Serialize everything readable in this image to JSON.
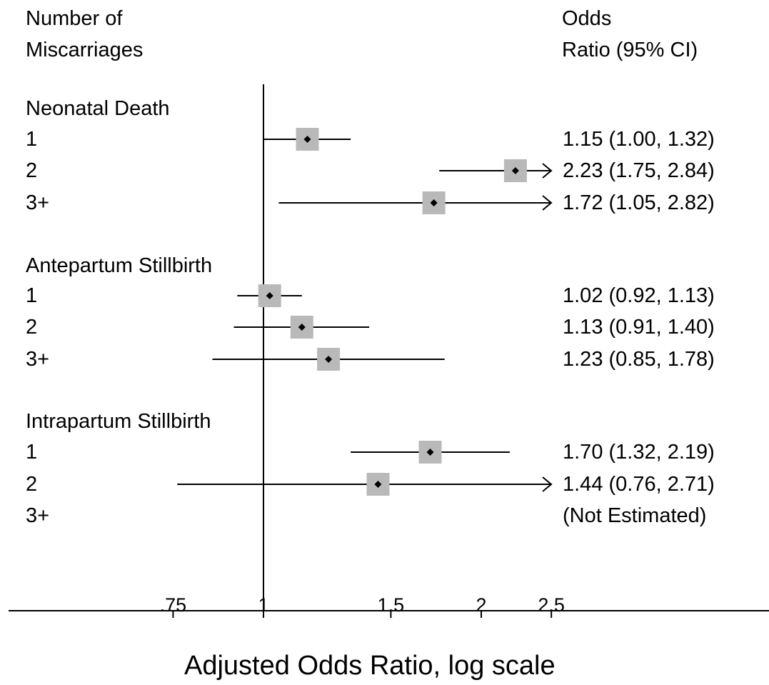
{
  "header": {
    "left_line1": "Number of",
    "left_line2": "Miscarriages",
    "right_line1": "Odds",
    "right_line2": "Ratio (95% CI)"
  },
  "chart_data": {
    "type": "forest",
    "xlabel": "Adjusted Odds Ratio, log scale",
    "xscale": "log",
    "xlim": [
      0.67,
      2.5
    ],
    "xticks": [
      0.75,
      1,
      1.5,
      2,
      2.5
    ],
    "xtick_labels": [
      ".75",
      "1",
      "1.5",
      "2",
      "2.5"
    ],
    "reference_line": 1,
    "groups": [
      {
        "name": "Neonatal Death",
        "rows": [
          {
            "label": "1",
            "or": 1.15,
            "lower": 1.0,
            "upper": 1.32,
            "arrow": false,
            "text": "1.15 (1.00, 1.32)"
          },
          {
            "label": "2",
            "or": 2.23,
            "lower": 1.75,
            "upper": 2.84,
            "arrow": true,
            "text": "2.23 (1.75, 2.84)"
          },
          {
            "label": "3+",
            "or": 1.72,
            "lower": 1.05,
            "upper": 2.82,
            "arrow": true,
            "text": "1.72 (1.05, 2.82)"
          }
        ]
      },
      {
        "name": "Antepartum Stillbirth",
        "rows": [
          {
            "label": "1",
            "or": 1.02,
            "lower": 0.92,
            "upper": 1.13,
            "arrow": false,
            "text": "1.02 (0.92, 1.13)"
          },
          {
            "label": "2",
            "or": 1.13,
            "lower": 0.91,
            "upper": 1.4,
            "arrow": false,
            "text": "1.13 (0.91, 1.40)"
          },
          {
            "label": "3+",
            "or": 1.23,
            "lower": 0.85,
            "upper": 1.78,
            "arrow": false,
            "text": "1.23 (0.85, 1.78)"
          }
        ]
      },
      {
        "name": "Intrapartum Stillbirth",
        "rows": [
          {
            "label": "1",
            "or": 1.7,
            "lower": 1.32,
            "upper": 2.19,
            "arrow": false,
            "text": "1.70 (1.32, 2.19)"
          },
          {
            "label": "2",
            "or": 1.44,
            "lower": 0.76,
            "upper": 2.71,
            "arrow": true,
            "text": "1.44 (0.76, 2.71)"
          },
          {
            "label": "3+",
            "or": null,
            "lower": null,
            "upper": null,
            "arrow": false,
            "text": "(Not Estimated)"
          }
        ]
      }
    ],
    "colors": {
      "marker_box": "#b9b9b9",
      "point": "#000000",
      "line": "#000000"
    }
  }
}
